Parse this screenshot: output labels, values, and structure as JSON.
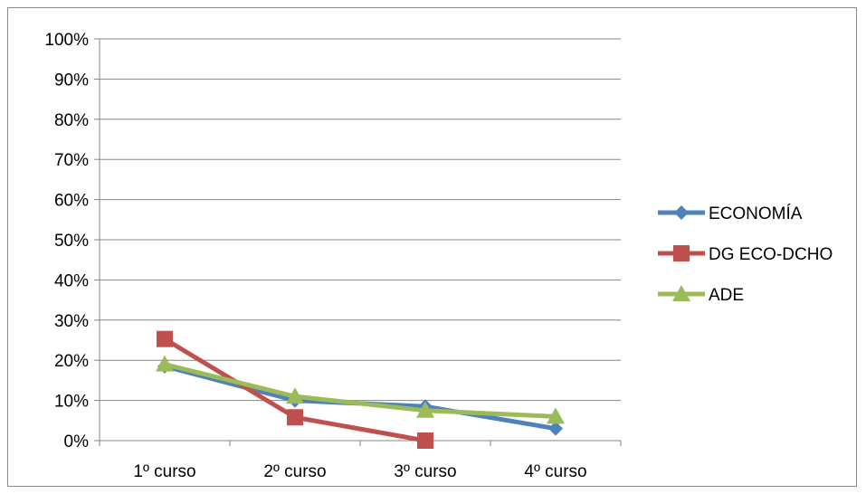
{
  "chart_data": {
    "type": "line",
    "categories": [
      "1º curso",
      "2º curso",
      "3º curso",
      "4º curso"
    ],
    "yticks": [
      "0%",
      "10%",
      "20%",
      "30%",
      "40%",
      "50%",
      "60%",
      "70%",
      "80%",
      "90%",
      "100%"
    ],
    "ylim": [
      0,
      100
    ],
    "grid": true,
    "legend_position": "right",
    "series": [
      {
        "name": "ECONOMÍA",
        "values": [
          18.5,
          10,
          8.5,
          3
        ],
        "color": "#4F81BD",
        "marker": "diamond"
      },
      {
        "name": "DG ECO-DCHO",
        "values": [
          25.3,
          5.8,
          0,
          null
        ],
        "color": "#C0504D",
        "marker": "square"
      },
      {
        "name": "ADE",
        "values": [
          19,
          11,
          7.5,
          6
        ],
        "color": "#9BBB59",
        "marker": "triangle"
      }
    ]
  }
}
